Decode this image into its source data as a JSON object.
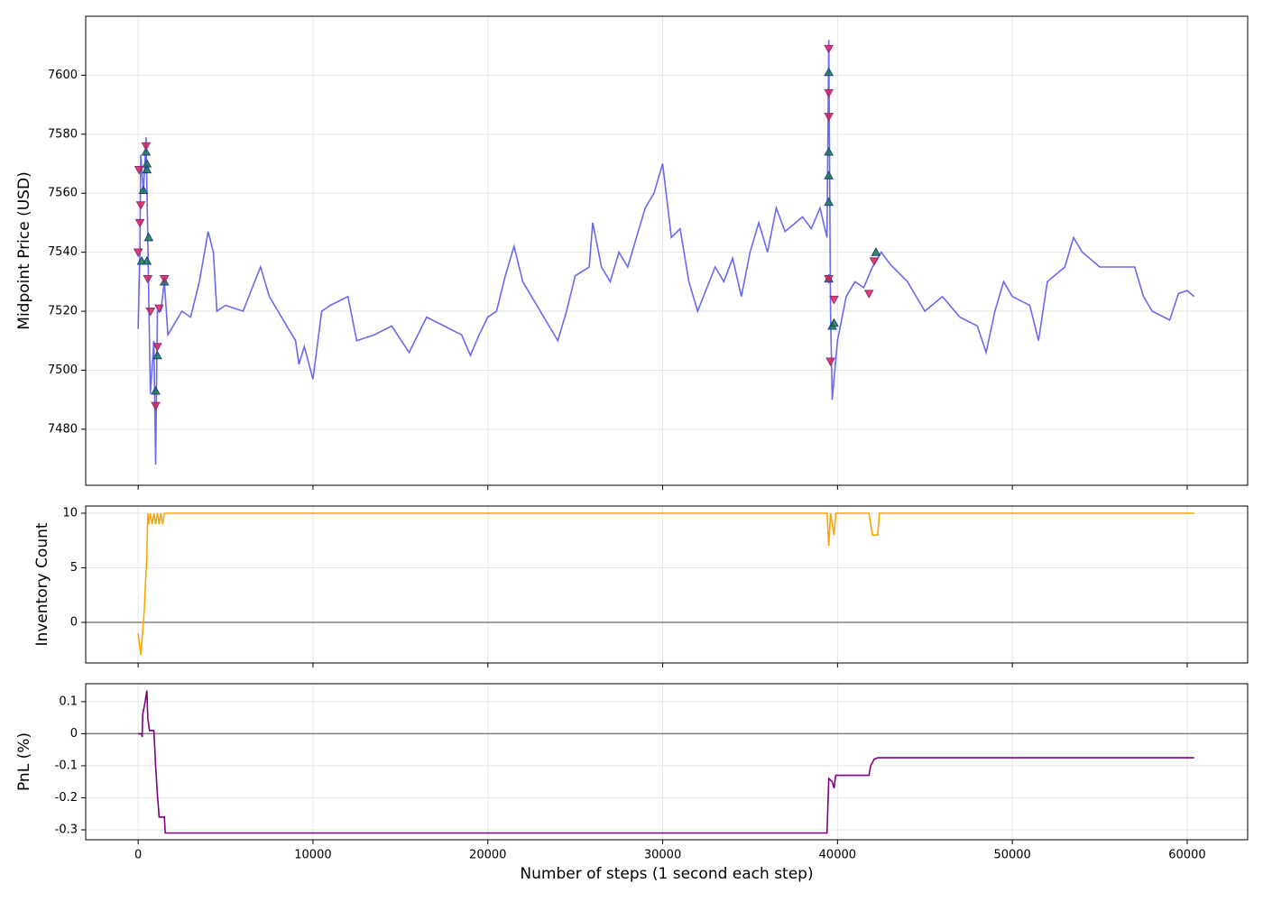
{
  "chart_data": [
    {
      "type": "line",
      "ylabel": "Midpoint Price (USD)",
      "xlim": [
        -3000,
        63460
      ],
      "ylim": [
        7461,
        7620
      ],
      "yticks": [
        7480,
        7500,
        7520,
        7540,
        7560,
        7580,
        7600
      ],
      "grid": true,
      "series": [
        {
          "type": "line",
          "color": "#4444ee",
          "x": [
            0,
            100,
            150,
            300,
            450,
            550,
            700,
            900,
            1000,
            1100,
            1300,
            1500,
            1700,
            2000,
            2500,
            3000,
            3500,
            4000,
            4300,
            4500,
            5000,
            6000,
            7000,
            7500,
            8000,
            9000,
            9200,
            9500,
            10000,
            10500,
            11000,
            12000,
            12500,
            13500,
            14500,
            15500,
            16500,
            17500,
            18500,
            19000,
            19500,
            20000,
            20500,
            21000,
            21500,
            22000,
            23000,
            23500,
            24000,
            24500,
            25000,
            25800,
            26000,
            26500,
            27000,
            27500,
            28000,
            28500,
            29000,
            29500,
            30000,
            30500,
            31000,
            31500,
            32000,
            33000,
            33500,
            34000,
            34500,
            35000,
            35500,
            36000,
            36500,
            37000,
            38000,
            38500,
            39000,
            39400,
            39500,
            39600,
            39700,
            40000,
            40500,
            41000,
            41500,
            42000,
            42500,
            43000,
            44000,
            45000,
            46000,
            47000,
            48000,
            48500,
            49000,
            49500,
            50000,
            51000,
            51500,
            52000,
            53000,
            53500,
            54000,
            55000,
            56000,
            57000,
            57500,
            58000,
            59000,
            59500,
            60000,
            60400
          ],
          "values": [
            7514,
            7540,
            7573,
            7560,
            7579,
            7545,
            7492,
            7510,
            7468,
            7520,
            7520,
            7530,
            7512,
            7515,
            7520,
            7518,
            7530,
            7547,
            7540,
            7520,
            7522,
            7520,
            7535,
            7525,
            7520,
            7510,
            7502,
            7508,
            7497,
            7520,
            7522,
            7525,
            7510,
            7512,
            7515,
            7506,
            7518,
            7515,
            7512,
            7505,
            7512,
            7518,
            7520,
            7532,
            7542,
            7530,
            7520,
            7515,
            7510,
            7520,
            7532,
            7535,
            7550,
            7535,
            7530,
            7540,
            7535,
            7545,
            7555,
            7560,
            7570,
            7545,
            7548,
            7530,
            7520,
            7535,
            7530,
            7538,
            7525,
            7540,
            7550,
            7540,
            7555,
            7547,
            7552,
            7548,
            7555,
            7545,
            7612,
            7520,
            7490,
            7510,
            7525,
            7530,
            7528,
            7535,
            7540,
            7536,
            7530,
            7520,
            7525,
            7518,
            7515,
            7506,
            7520,
            7530,
            7525,
            7522,
            7510,
            7530,
            7535,
            7545,
            7540,
            7535,
            7535,
            7535,
            7525,
            7520,
            7517,
            7526,
            7527,
            7525
          ]
        },
        {
          "type": "scatter",
          "marker": "up",
          "color": "#1a7a3a",
          "edge": "#1f3f99",
          "x": [
            200,
            300,
            450,
            500,
            500,
            600,
            500,
            1000,
            1100,
            1500,
            39500,
            39500,
            39500,
            39500,
            39500,
            39700,
            39800,
            42200
          ],
          "values": [
            7537,
            7561,
            7574,
            7570,
            7568,
            7545,
            7537,
            7493,
            7505,
            7530,
            7601,
            7574,
            7566,
            7557,
            7531,
            7515,
            7516,
            7540
          ]
        },
        {
          "type": "scatter",
          "marker": "down",
          "color": "#e0204a",
          "edge": "#8a2a8a",
          "x": [
            0,
            100,
            150,
            50,
            450,
            550,
            700,
            1000,
            1100,
            1200,
            1500,
            39500,
            39500,
            39500,
            39500,
            39600,
            39800,
            41800,
            42100
          ],
          "values": [
            7540,
            7550,
            7556,
            7568,
            7576,
            7531,
            7520,
            7488,
            7508,
            7521,
            7531,
            7609,
            7594,
            7586,
            7531,
            7503,
            7524,
            7526,
            7537
          ]
        }
      ]
    },
    {
      "type": "line",
      "ylabel": "Inventory Count",
      "xlim": [
        -3000,
        63460
      ],
      "ylim": [
        -3.72,
        10.66
      ],
      "yticks": [
        0,
        5,
        10
      ],
      "grid": true,
      "hline": 0,
      "hline_color": "gray",
      "series": [
        {
          "type": "line",
          "color": "orange",
          "x": [
            0,
            150,
            250,
            350,
            400,
            500,
            550,
            600,
            700,
            800,
            900,
            1000,
            1100,
            1200,
            1300,
            1400,
            1500,
            39400,
            39500,
            39600,
            39800,
            39900,
            41800,
            42000,
            42300,
            42400,
            60400
          ],
          "values": [
            -1,
            -3,
            -1,
            1,
            3,
            6,
            10,
            9,
            10,
            9,
            10,
            9,
            10,
            9,
            10,
            9,
            10,
            10,
            7,
            10,
            8,
            10,
            10,
            8,
            8,
            10,
            10
          ]
        }
      ]
    },
    {
      "type": "line",
      "ylabel": "PnL (%)",
      "xlabel": "Number of steps (1 second each step)",
      "xlim": [
        -3000,
        63460
      ],
      "ylim": [
        -0.331,
        0.156
      ],
      "yticks": [
        -0.3,
        -0.2,
        -0.1,
        0.0,
        0.1
      ],
      "xticks": [
        0,
        10000,
        20000,
        30000,
        40000,
        50000,
        60000
      ],
      "grid": true,
      "hline": 0,
      "hline_color": "gray",
      "series": [
        {
          "type": "line",
          "color": "purple",
          "x": [
            0,
            200,
            230,
            260,
            400,
            500,
            550,
            650,
            900,
            1000,
            1100,
            1200,
            1500,
            1550,
            39400,
            39500,
            39700,
            39800,
            39900,
            41800,
            41900,
            42100,
            42300,
            60400
          ],
          "values": [
            0,
            0,
            -0.01,
            0.06,
            0.1,
            0.135,
            0.05,
            0.01,
            0.01,
            -0.1,
            -0.19,
            -0.26,
            -0.26,
            -0.31,
            -0.31,
            -0.14,
            -0.15,
            -0.17,
            -0.13,
            -0.13,
            -0.1,
            -0.08,
            -0.075,
            -0.075
          ]
        }
      ]
    }
  ]
}
